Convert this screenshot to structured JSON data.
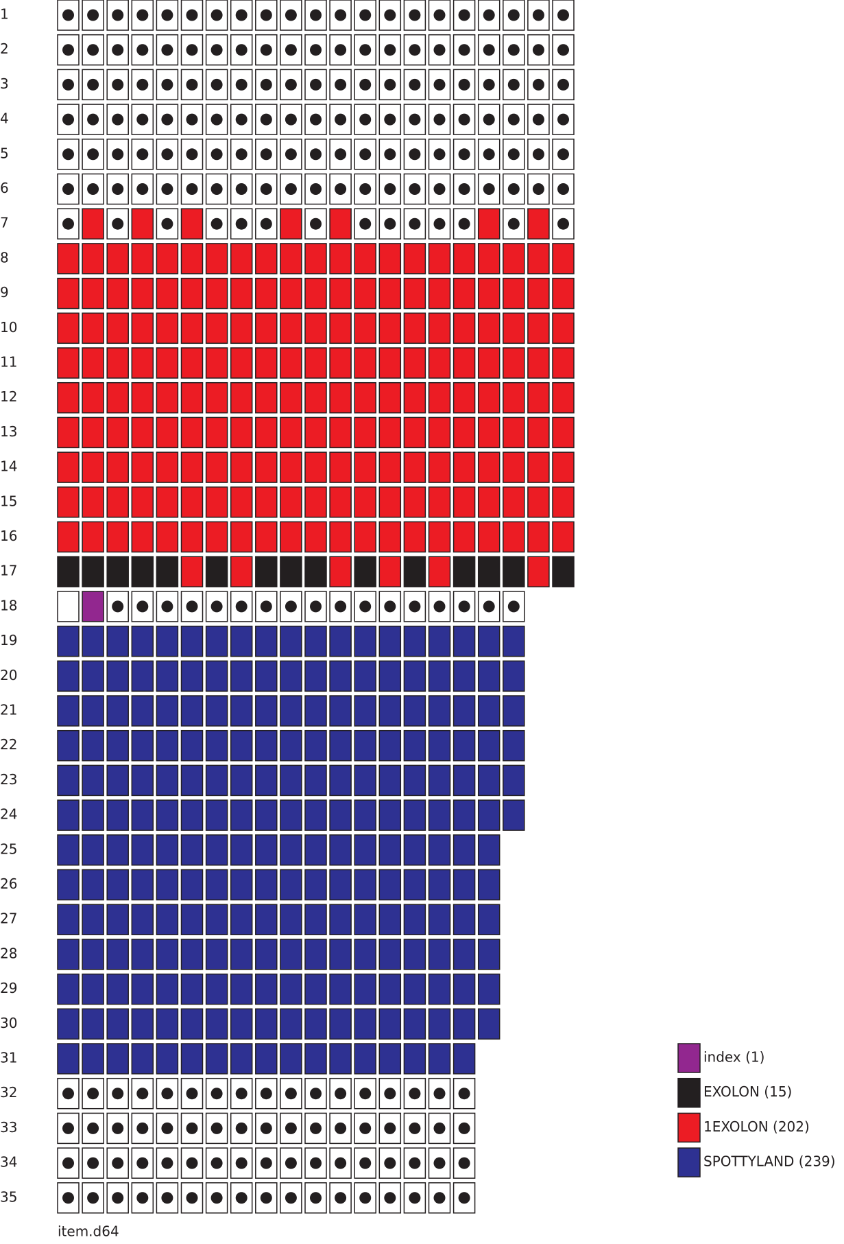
{
  "legend": [
    {
      "label": "index (1)",
      "color": "#92278f"
    },
    {
      "label": "EXOLON (15)",
      "color": "#231f20"
    },
    {
      "label": "1EXOLON (202)",
      "color": "#ec1c24"
    },
    {
      "label": "SPOTTYLAND (239)",
      "color": "#2e3192"
    }
  ],
  "rows": [
    {
      "label": "1",
      "cells": "ooooooooooooooooooooo"
    },
    {
      "label": "2",
      "cells": "ooooooooooooooooooooo"
    },
    {
      "label": "3",
      "cells": "ooooooooooooooooooooo"
    },
    {
      "label": "4",
      "cells": "ooooooooooooooooooooo"
    },
    {
      "label": "5",
      "cells": "ooooooooooooooooooooo"
    },
    {
      "label": "6",
      "cells": "ooooooooooooooooooooo"
    },
    {
      "label": "7",
      "cells": "o2o2o2ooo2o2ooooo2o2o"
    },
    {
      "label": "8",
      "cells": "222222222222222222222"
    },
    {
      "label": "9",
      "cells": "222222222222222222222"
    },
    {
      "label": "10",
      "cells": "222222222222222222222"
    },
    {
      "label": "11",
      "cells": "222222222222222222222"
    },
    {
      "label": "12",
      "cells": "222222222222222222222"
    },
    {
      "label": "13",
      "cells": "222222222222222222222"
    },
    {
      "label": "14",
      "cells": "222222222222222222222"
    },
    {
      "label": "15",
      "cells": "222222222222222222222"
    },
    {
      "label": "16",
      "cells": "222222222222222222222"
    },
    {
      "label": "17",
      "cells": "111112121112121211121"
    },
    {
      "label": "18",
      "cells": ".0ooooooooooooooooo"
    },
    {
      "label": "19",
      "cells": "3333333333333333333"
    },
    {
      "label": "20",
      "cells": "3333333333333333333"
    },
    {
      "label": "21",
      "cells": "3333333333333333333"
    },
    {
      "label": "22",
      "cells": "3333333333333333333"
    },
    {
      "label": "23",
      "cells": "3333333333333333333"
    },
    {
      "label": "24",
      "cells": "3333333333333333333"
    },
    {
      "label": "25",
      "cells": "333333333333333333"
    },
    {
      "label": "26",
      "cells": "333333333333333333"
    },
    {
      "label": "27",
      "cells": "333333333333333333"
    },
    {
      "label": "28",
      "cells": "333333333333333333"
    },
    {
      "label": "29",
      "cells": "333333333333333333"
    },
    {
      "label": "30",
      "cells": "333333333333333333"
    },
    {
      "label": "31",
      "cells": "33333333333333333"
    },
    {
      "label": "32",
      "cells": "ooooooooooooooooo"
    },
    {
      "label": "33",
      "cells": "ooooooooooooooooo"
    },
    {
      "label": "34",
      "cells": "ooooooooooooooooo"
    },
    {
      "label": "35",
      "cells": "ooooooooooooooooo"
    }
  ],
  "footer": "item.d64"
}
